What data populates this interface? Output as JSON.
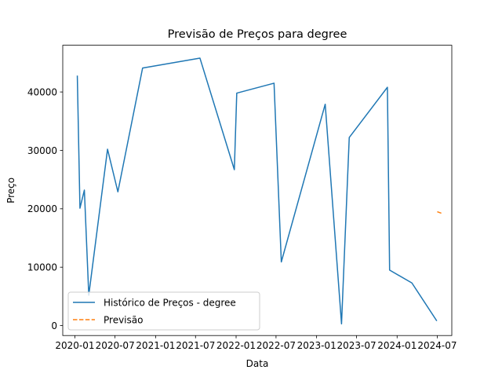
{
  "chart_data": {
    "type": "line",
    "title": "Previsão de Preços para degree",
    "xlabel": "Data",
    "ylabel": "Preço",
    "x_ticks": [
      "2020-01",
      "2020-07",
      "2021-01",
      "2021-07",
      "2022-01",
      "2022-07",
      "2023-01",
      "2023-07",
      "2024-01",
      "2024-07"
    ],
    "y_ticks": [
      0,
      10000,
      20000,
      30000,
      40000
    ],
    "ylim": [
      -1700,
      48000
    ],
    "xlim": [
      "2019-11-07",
      "2024-09-05"
    ],
    "grid": false,
    "legend_position": "lower-left",
    "series": [
      {
        "name": "Histórico de Preços - degree",
        "color": "#1f77b4",
        "style": "solid",
        "points": [
          [
            "2020-01-12",
            42800
          ],
          [
            "2020-01-24",
            20100
          ],
          [
            "2020-02-13",
            23200
          ],
          [
            "2020-03-04",
            5200
          ],
          [
            "2020-05-28",
            30200
          ],
          [
            "2020-07-14",
            22900
          ],
          [
            "2020-11-03",
            44100
          ],
          [
            "2021-07-21",
            45800
          ],
          [
            "2021-12-24",
            26700
          ],
          [
            "2022-01-04",
            39800
          ],
          [
            "2022-06-22",
            41500
          ],
          [
            "2022-07-25",
            10900
          ],
          [
            "2023-02-09",
            37900
          ],
          [
            "2023-04-24",
            300
          ],
          [
            "2023-05-29",
            32200
          ],
          [
            "2023-11-18",
            40800
          ],
          [
            "2023-11-28",
            9500
          ],
          [
            "2024-03-08",
            7300
          ],
          [
            "2024-06-29",
            800
          ]
        ]
      },
      {
        "name": "Previsão",
        "color": "#ff7f0e",
        "style": "dashed",
        "points": [
          [
            "2024-07-01",
            19500
          ],
          [
            "2024-07-23",
            19200
          ]
        ]
      }
    ]
  }
}
